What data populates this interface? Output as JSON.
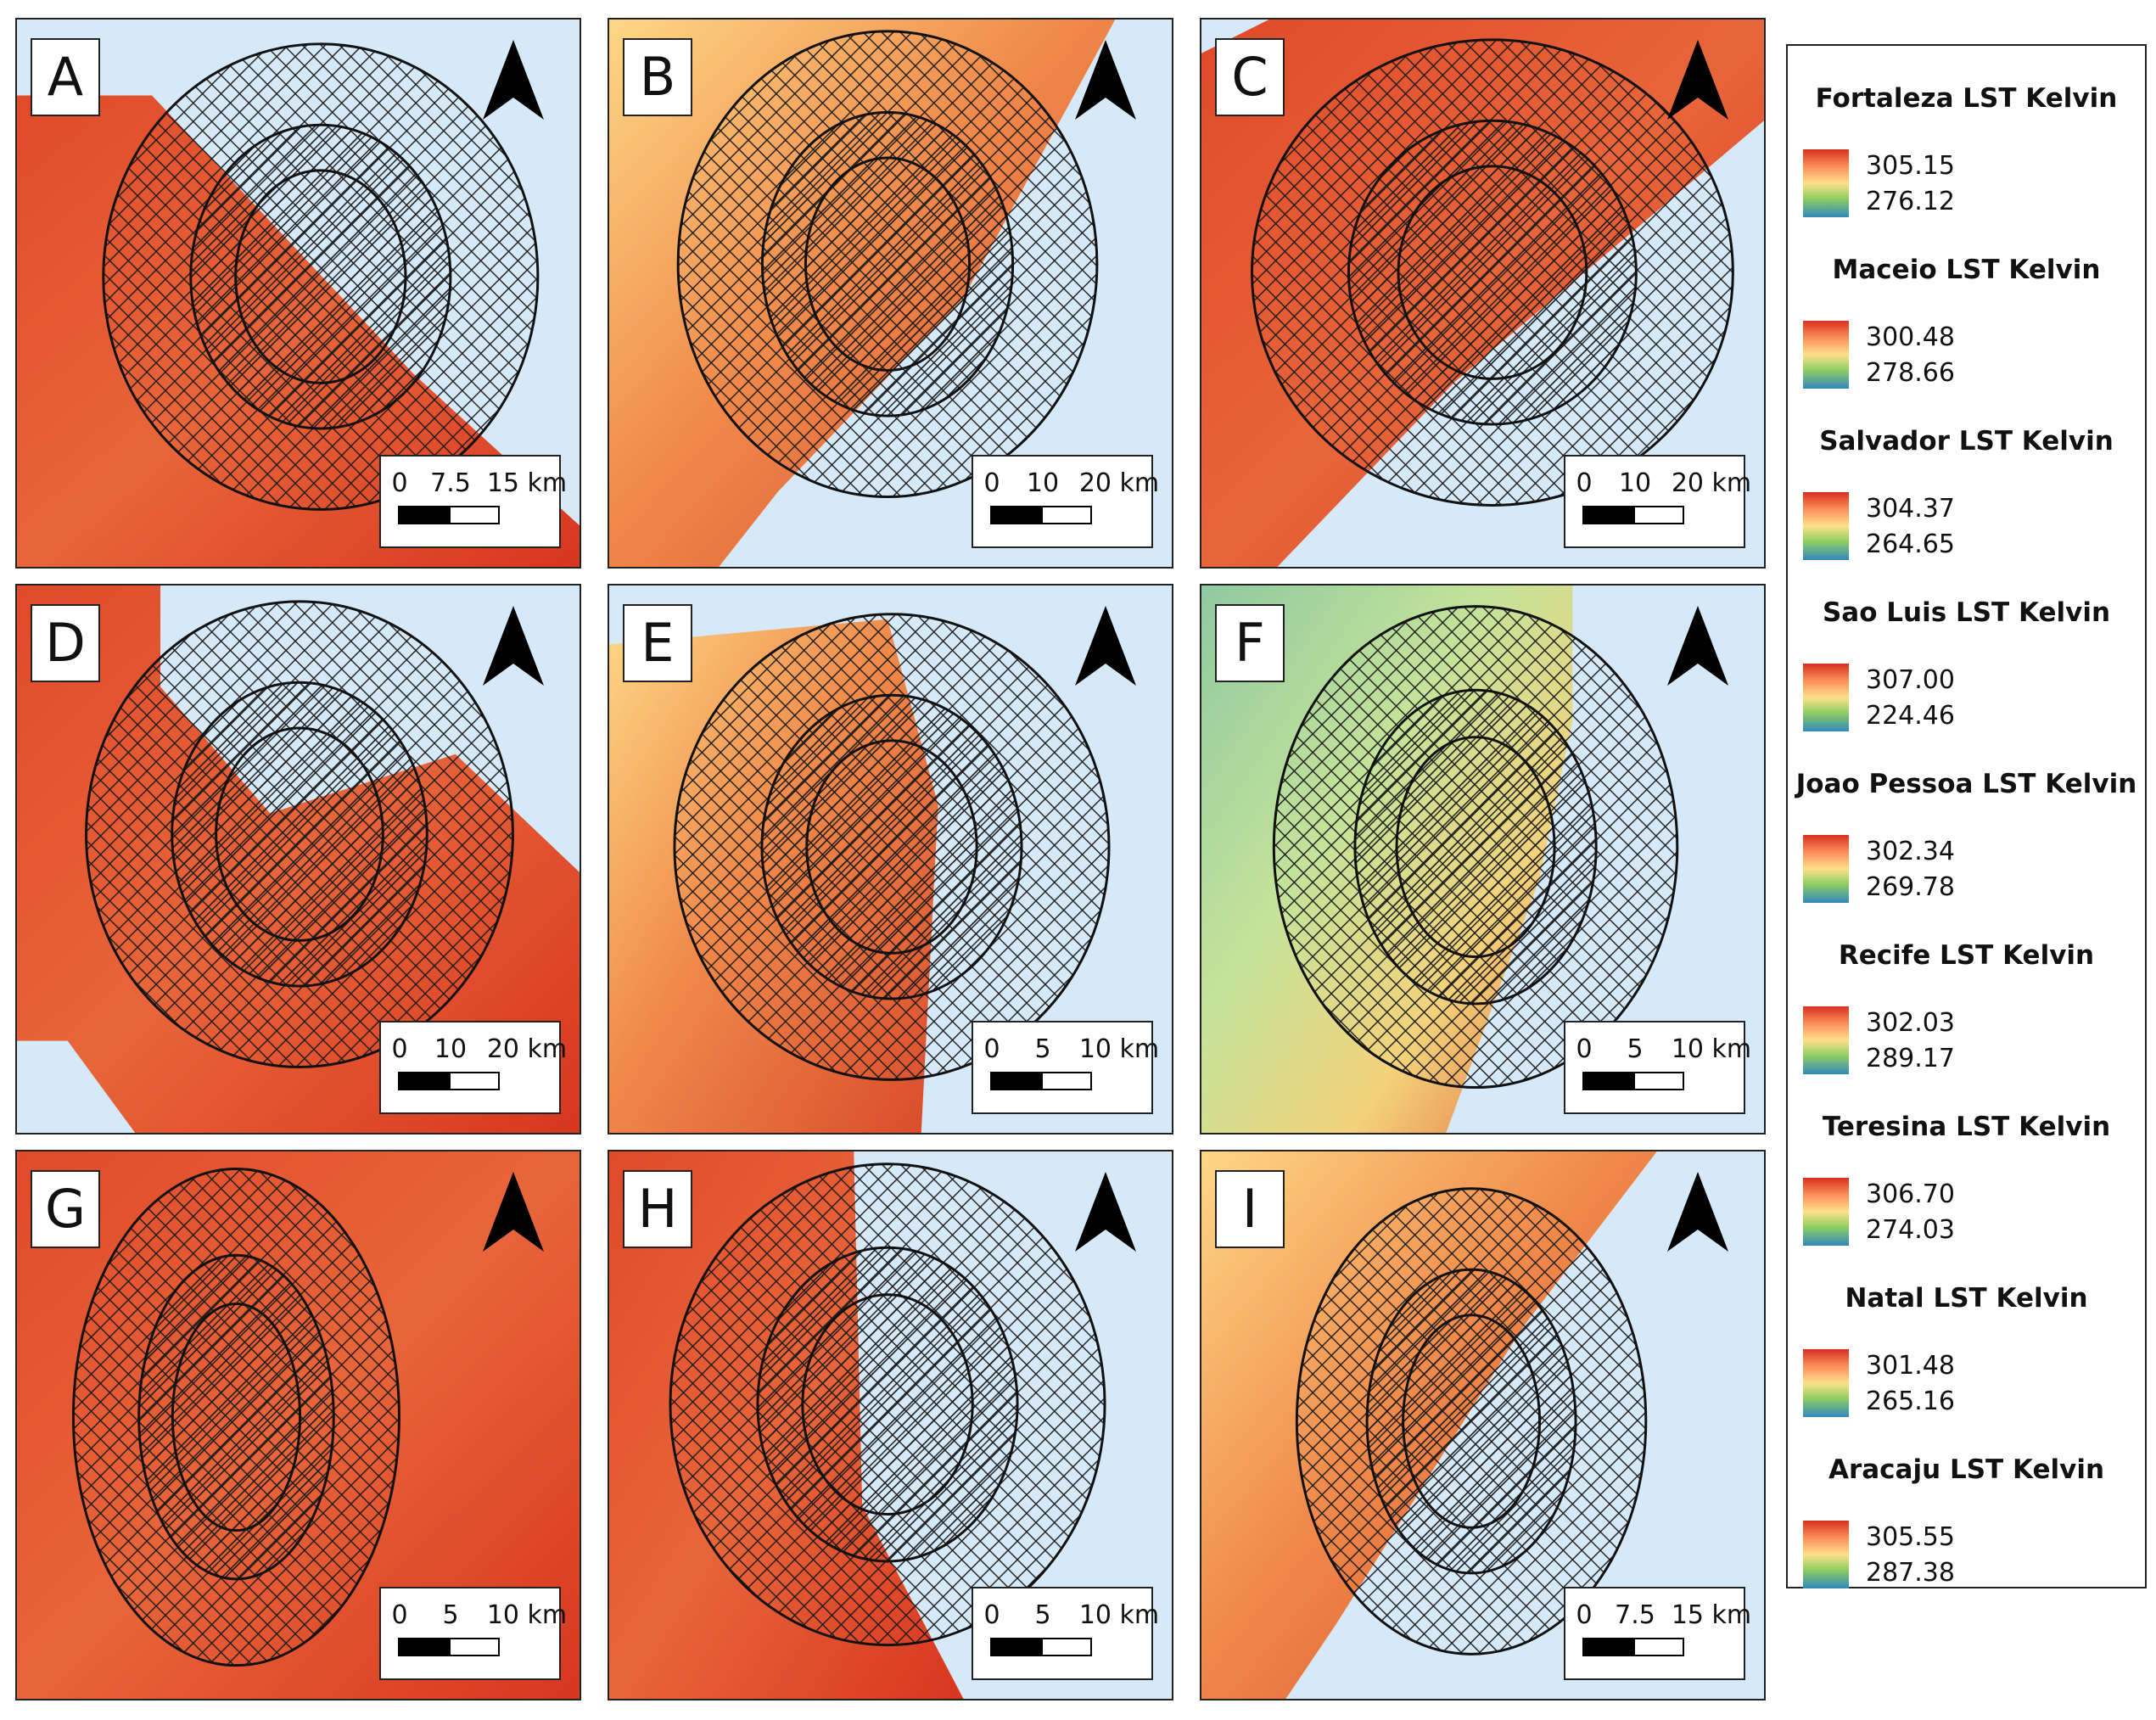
{
  "panels": [
    {
      "letter": "A",
      "scale": [
        "0",
        "7.5",
        "15 km"
      ]
    },
    {
      "letter": "B",
      "scale": [
        "0",
        "10",
        "20 km"
      ]
    },
    {
      "letter": "C",
      "scale": [
        "0",
        "10",
        "20 km"
      ]
    },
    {
      "letter": "D",
      "scale": [
        "0",
        "10",
        "20 km"
      ]
    },
    {
      "letter": "E",
      "scale": [
        "0",
        "5",
        "10 km"
      ]
    },
    {
      "letter": "F",
      "scale": [
        "0",
        "5",
        "10 km"
      ]
    },
    {
      "letter": "G",
      "scale": [
        "0",
        "5",
        "10 km"
      ]
    },
    {
      "letter": "H",
      "scale": [
        "0",
        "5",
        "10 km"
      ]
    },
    {
      "letter": "I",
      "scale": [
        "0",
        "7.5",
        "15 km"
      ]
    }
  ],
  "legend": [
    {
      "title": "Fortaleza LST Kelvin",
      "max": "305.15",
      "min": "276.12"
    },
    {
      "title": "Maceio LST Kelvin",
      "max": "300.48",
      "min": "278.66"
    },
    {
      "title": "Salvador LST Kelvin",
      "max": "304.37",
      "min": "264.65"
    },
    {
      "title": "Sao Luis LST Kelvin",
      "max": "307.00",
      "min": "224.46"
    },
    {
      "title": "Joao Pessoa LST Kelvin",
      "max": "302.34",
      "min": "269.78"
    },
    {
      "title": "Recife LST Kelvin",
      "max": "302.03",
      "min": "289.17"
    },
    {
      "title": "Teresina LST Kelvin",
      "max": "306.70",
      "min": "274.03"
    },
    {
      "title": "Natal LST Kelvin",
      "max": "301.48",
      "min": "265.16"
    },
    {
      "title": "Aracaju LST Kelvin",
      "max": "305.55",
      "min": "287.38"
    }
  ],
  "colors": {
    "water": "#d6e9f8",
    "lst_high": "#d7301f",
    "lst_mid": "#fee08b",
    "lst_low": "#3288bd"
  }
}
